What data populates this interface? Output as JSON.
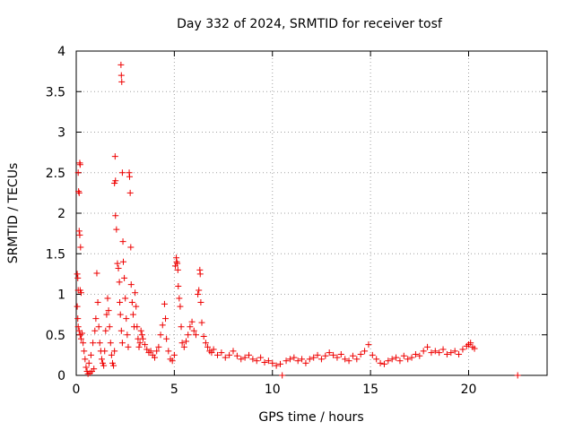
{
  "chart_data": {
    "type": "scatter",
    "title": "Day 332 of 2024, SRMTID for receiver tosf",
    "xlabel": "GPS time / hours",
    "ylabel": "SRMTID / TECUs",
    "xlim": [
      0,
      24
    ],
    "ylim": [
      0,
      4
    ],
    "xticks": [
      0,
      5,
      10,
      15,
      20
    ],
    "yticks": [
      0,
      0.5,
      1,
      1.5,
      2,
      2.5,
      3,
      3.5,
      4
    ],
    "grid": true,
    "marker": "plus",
    "color": "#ee0000",
    "series": [
      {
        "name": "SRMTID",
        "points": [
          [
            0.05,
            1.25
          ],
          [
            0.08,
            1.2
          ],
          [
            0.1,
            1.05
          ],
          [
            0.12,
            2.27
          ],
          [
            0.15,
            2.25
          ],
          [
            0.18,
            2.62
          ],
          [
            0.2,
            2.6
          ],
          [
            0.1,
            2.5
          ],
          [
            0.15,
            1.78
          ],
          [
            0.18,
            1.73
          ],
          [
            0.22,
            1.58
          ],
          [
            0.2,
            1.05
          ],
          [
            0.25,
            1.02
          ],
          [
            0.05,
            0.85
          ],
          [
            0.08,
            0.7
          ],
          [
            0.1,
            0.6
          ],
          [
            0.15,
            0.55
          ],
          [
            0.2,
            0.5
          ],
          [
            0.25,
            0.45
          ],
          [
            0.3,
            0.52
          ],
          [
            0.35,
            0.4
          ],
          [
            0.4,
            0.3
          ],
          [
            0.45,
            0.2
          ],
          [
            0.5,
            0.1
          ],
          [
            0.55,
            0.05
          ],
          [
            0.6,
            0.02
          ],
          [
            0.7,
            0.03
          ],
          [
            0.8,
            0.05
          ],
          [
            0.9,
            0.08
          ],
          [
            0.65,
            0.15
          ],
          [
            0.75,
            0.25
          ],
          [
            0.85,
            0.4
          ],
          [
            0.95,
            0.55
          ],
          [
            1.0,
            0.7
          ],
          [
            1.05,
            1.26
          ],
          [
            1.1,
            0.9
          ],
          [
            1.15,
            0.6
          ],
          [
            1.2,
            0.4
          ],
          [
            1.25,
            0.3
          ],
          [
            1.3,
            0.2
          ],
          [
            1.35,
            0.15
          ],
          [
            1.4,
            0.12
          ],
          [
            1.45,
            0.3
          ],
          [
            1.5,
            0.55
          ],
          [
            1.55,
            0.75
          ],
          [
            1.6,
            0.95
          ],
          [
            1.65,
            0.8
          ],
          [
            1.7,
            0.6
          ],
          [
            1.75,
            0.4
          ],
          [
            1.8,
            0.25
          ],
          [
            1.85,
            0.15
          ],
          [
            1.9,
            0.12
          ],
          [
            1.95,
            0.3
          ],
          [
            1.95,
            2.37
          ],
          [
            2.0,
            2.4
          ],
          [
            1.98,
            2.7
          ],
          [
            2.0,
            1.97
          ],
          [
            2.05,
            1.8
          ],
          [
            2.1,
            1.38
          ],
          [
            2.15,
            1.32
          ],
          [
            2.2,
            1.15
          ],
          [
            2.22,
            0.9
          ],
          [
            2.25,
            0.75
          ],
          [
            2.3,
            0.55
          ],
          [
            2.35,
            0.4
          ],
          [
            2.28,
            3.83
          ],
          [
            2.3,
            3.7
          ],
          [
            2.32,
            3.62
          ],
          [
            2.35,
            2.5
          ],
          [
            2.38,
            1.65
          ],
          [
            2.4,
            1.4
          ],
          [
            2.45,
            1.2
          ],
          [
            2.5,
            0.95
          ],
          [
            2.55,
            0.7
          ],
          [
            2.6,
            0.5
          ],
          [
            2.65,
            0.35
          ],
          [
            2.7,
            2.5
          ],
          [
            2.72,
            2.45
          ],
          [
            2.75,
            2.25
          ],
          [
            2.78,
            1.58
          ],
          [
            2.8,
            1.12
          ],
          [
            2.85,
            0.9
          ],
          [
            2.9,
            0.75
          ],
          [
            2.95,
            0.6
          ],
          [
            3.0,
            1.02
          ],
          [
            3.05,
            0.85
          ],
          [
            3.1,
            0.6
          ],
          [
            3.15,
            0.45
          ],
          [
            3.2,
            0.35
          ],
          [
            3.25,
            0.4
          ],
          [
            3.3,
            0.55
          ],
          [
            3.35,
            0.5
          ],
          [
            3.4,
            0.45
          ],
          [
            3.5,
            0.38
          ],
          [
            3.6,
            0.32
          ],
          [
            3.7,
            0.28
          ],
          [
            3.8,
            0.3
          ],
          [
            3.9,
            0.25
          ],
          [
            4.0,
            0.22
          ],
          [
            4.1,
            0.3
          ],
          [
            4.2,
            0.35
          ],
          [
            4.3,
            0.5
          ],
          [
            4.4,
            0.62
          ],
          [
            4.5,
            0.88
          ],
          [
            4.55,
            0.7
          ],
          [
            4.6,
            0.45
          ],
          [
            4.7,
            0.3
          ],
          [
            4.8,
            0.2
          ],
          [
            4.9,
            0.18
          ],
          [
            5.0,
            0.25
          ],
          [
            5.05,
            1.35
          ],
          [
            5.1,
            1.45
          ],
          [
            5.12,
            1.4
          ],
          [
            5.15,
            1.38
          ],
          [
            5.18,
            1.3
          ],
          [
            5.2,
            1.1
          ],
          [
            5.25,
            0.95
          ],
          [
            5.3,
            0.85
          ],
          [
            5.35,
            0.6
          ],
          [
            5.4,
            0.4
          ],
          [
            5.5,
            0.35
          ],
          [
            5.6,
            0.42
          ],
          [
            5.7,
            0.5
          ],
          [
            5.8,
            0.6
          ],
          [
            5.9,
            0.66
          ],
          [
            6.0,
            0.55
          ],
          [
            6.1,
            0.5
          ],
          [
            6.2,
            1.0
          ],
          [
            6.25,
            1.05
          ],
          [
            6.3,
            1.3
          ],
          [
            6.32,
            1.25
          ],
          [
            6.35,
            0.9
          ],
          [
            6.4,
            0.65
          ],
          [
            6.5,
            0.48
          ],
          [
            6.6,
            0.4
          ],
          [
            6.7,
            0.35
          ],
          [
            6.8,
            0.3
          ],
          [
            6.9,
            0.28
          ],
          [
            7.0,
            0.32
          ],
          [
            7.2,
            0.25
          ],
          [
            7.4,
            0.28
          ],
          [
            7.6,
            0.22
          ],
          [
            7.8,
            0.25
          ],
          [
            8.0,
            0.3
          ],
          [
            8.2,
            0.24
          ],
          [
            8.4,
            0.2
          ],
          [
            8.6,
            0.22
          ],
          [
            8.8,
            0.25
          ],
          [
            9.0,
            0.2
          ],
          [
            9.2,
            0.18
          ],
          [
            9.4,
            0.22
          ],
          [
            9.6,
            0.16
          ],
          [
            9.8,
            0.18
          ],
          [
            10.0,
            0.15
          ],
          [
            10.2,
            0.12
          ],
          [
            10.4,
            0.14
          ],
          [
            10.5,
            0.0
          ],
          [
            10.7,
            0.18
          ],
          [
            10.9,
            0.2
          ],
          [
            11.1,
            0.22
          ],
          [
            11.3,
            0.18
          ],
          [
            11.5,
            0.2
          ],
          [
            11.7,
            0.15
          ],
          [
            11.9,
            0.2
          ],
          [
            12.1,
            0.22
          ],
          [
            12.3,
            0.25
          ],
          [
            12.5,
            0.2
          ],
          [
            12.7,
            0.24
          ],
          [
            12.9,
            0.28
          ],
          [
            13.1,
            0.25
          ],
          [
            13.3,
            0.22
          ],
          [
            13.5,
            0.26
          ],
          [
            13.7,
            0.2
          ],
          [
            13.9,
            0.18
          ],
          [
            14.1,
            0.24
          ],
          [
            14.3,
            0.2
          ],
          [
            14.5,
            0.26
          ],
          [
            14.7,
            0.3
          ],
          [
            14.9,
            0.38
          ],
          [
            15.1,
            0.25
          ],
          [
            15.3,
            0.2
          ],
          [
            15.5,
            0.15
          ],
          [
            15.7,
            0.14
          ],
          [
            15.9,
            0.18
          ],
          [
            16.1,
            0.2
          ],
          [
            16.3,
            0.22
          ],
          [
            16.5,
            0.18
          ],
          [
            16.7,
            0.24
          ],
          [
            16.9,
            0.2
          ],
          [
            17.1,
            0.22
          ],
          [
            17.3,
            0.26
          ],
          [
            17.5,
            0.24
          ],
          [
            17.7,
            0.3
          ],
          [
            17.9,
            0.35
          ],
          [
            18.1,
            0.28
          ],
          [
            18.3,
            0.3
          ],
          [
            18.5,
            0.28
          ],
          [
            18.7,
            0.32
          ],
          [
            18.9,
            0.26
          ],
          [
            19.1,
            0.28
          ],
          [
            19.3,
            0.3
          ],
          [
            19.5,
            0.26
          ],
          [
            19.7,
            0.32
          ],
          [
            19.9,
            0.36
          ],
          [
            20.0,
            0.38
          ],
          [
            20.1,
            0.4
          ],
          [
            20.2,
            0.35
          ],
          [
            20.3,
            0.33
          ],
          [
            22.5,
            0.0
          ]
        ]
      }
    ]
  }
}
